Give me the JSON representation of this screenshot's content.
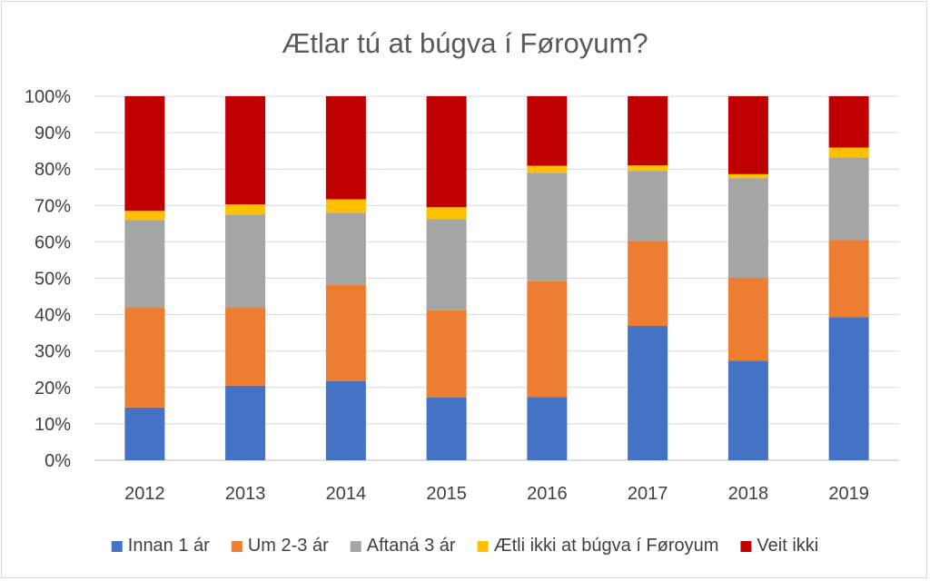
{
  "chart_data": {
    "type": "bar",
    "stacked": true,
    "percent_stacked": true,
    "title": "Ætlar tú at búgva í Føroyum?",
    "xlabel": "",
    "ylabel": "",
    "ylim": [
      0,
      100
    ],
    "yticks": [
      "0%",
      "10%",
      "20%",
      "30%",
      "40%",
      "50%",
      "60%",
      "70%",
      "80%",
      "90%",
      "100%"
    ],
    "grid": true,
    "legend_position": "bottom",
    "categories": [
      "2012",
      "2013",
      "2014",
      "2015",
      "2016",
      "2017",
      "2018",
      "2019"
    ],
    "series": [
      {
        "name": "Innan 1 ár",
        "color": "#4472c4",
        "values": [
          14.5,
          20.5,
          21.7,
          17.2,
          17.4,
          36.9,
          27.3,
          39.3
        ]
      },
      {
        "name": "Um 2-3 ár",
        "color": "#ed7d31",
        "values": [
          27.5,
          21.5,
          26.5,
          24.0,
          31.8,
          23.2,
          22.7,
          21.2
        ]
      },
      {
        "name": "Aftaná 3 ár",
        "color": "#a5a5a5",
        "values": [
          24.0,
          25.5,
          19.8,
          25.0,
          29.8,
          19.4,
          27.5,
          22.7
        ]
      },
      {
        "name": "Ætli ikki at búgva í Føroyum",
        "color": "#ffc000",
        "values": [
          2.5,
          2.8,
          3.7,
          3.3,
          1.9,
          1.5,
          1.1,
          2.7
        ]
      },
      {
        "name": "Veit ikki",
        "color": "#c00000",
        "values": [
          31.5,
          29.7,
          28.3,
          30.5,
          19.1,
          19.0,
          21.4,
          14.1
        ]
      }
    ]
  }
}
